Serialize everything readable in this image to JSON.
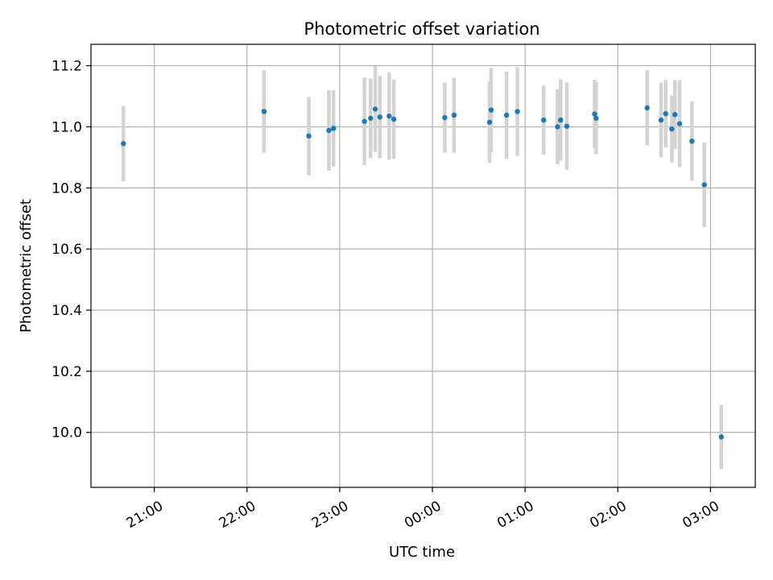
{
  "chart_data": {
    "type": "scatter",
    "title": "Photometric offset variation",
    "xlabel": "UTC time",
    "ylabel": "Photometric offset",
    "x_unit": "UTC time (hh:mm), crossing midnight",
    "xlim": [
      "20:19",
      "03:29"
    ],
    "ylim": [
      9.82,
      11.27
    ],
    "grid": true,
    "x_ticks": [
      "21:00",
      "22:00",
      "23:00",
      "00:00",
      "01:00",
      "02:00",
      "03:00"
    ],
    "y_ticks": [
      "10.0",
      "10.2",
      "10.4",
      "10.6",
      "10.8",
      "11.0",
      "11.2"
    ],
    "y_tick_values": [
      10.0,
      10.2,
      10.4,
      10.6,
      10.8,
      11.0,
      11.2
    ],
    "colors": {
      "points": "#1f77b4",
      "errorbars": "#d3d3d3",
      "grid": "#b0b0b0"
    },
    "points": [
      {
        "x": "20:40",
        "y": 10.945,
        "err": 0.123
      },
      {
        "x": "22:11",
        "y": 11.05,
        "err": 0.135
      },
      {
        "x": "22:40",
        "y": 10.97,
        "err": 0.128
      },
      {
        "x": "22:53",
        "y": 10.988,
        "err": 0.132
      },
      {
        "x": "22:56",
        "y": 10.995,
        "err": 0.125
      },
      {
        "x": "23:16",
        "y": 11.018,
        "err": 0.143
      },
      {
        "x": "23:20",
        "y": 11.028,
        "err": 0.13
      },
      {
        "x": "23:23",
        "y": 11.058,
        "err": 0.14
      },
      {
        "x": "23:26",
        "y": 11.032,
        "err": 0.135
      },
      {
        "x": "23:32",
        "y": 11.035,
        "err": 0.143
      },
      {
        "x": "23:35",
        "y": 11.025,
        "err": 0.13
      },
      {
        "x": "00:08",
        "y": 11.03,
        "err": 0.115
      },
      {
        "x": "00:14",
        "y": 11.038,
        "err": 0.123
      },
      {
        "x": "00:37",
        "y": 11.015,
        "err": 0.133
      },
      {
        "x": "00:38",
        "y": 11.055,
        "err": 0.138
      },
      {
        "x": "00:48",
        "y": 11.038,
        "err": 0.143
      },
      {
        "x": "00:55",
        "y": 11.05,
        "err": 0.145
      },
      {
        "x": "01:12",
        "y": 11.022,
        "err": 0.113
      },
      {
        "x": "01:21",
        "y": 11.0,
        "err": 0.123
      },
      {
        "x": "01:23",
        "y": 11.022,
        "err": 0.133
      },
      {
        "x": "01:27",
        "y": 11.002,
        "err": 0.143
      },
      {
        "x": "01:45",
        "y": 11.042,
        "err": 0.112
      },
      {
        "x": "01:46",
        "y": 11.028,
        "err": 0.118
      },
      {
        "x": "02:19",
        "y": 11.062,
        "err": 0.123
      },
      {
        "x": "02:28",
        "y": 11.022,
        "err": 0.122
      },
      {
        "x": "02:31",
        "y": 11.043,
        "err": 0.11
      },
      {
        "x": "02:35",
        "y": 10.993,
        "err": 0.11
      },
      {
        "x": "02:37",
        "y": 11.04,
        "err": 0.113
      },
      {
        "x": "02:40",
        "y": 11.01,
        "err": 0.142
      },
      {
        "x": "02:48",
        "y": 10.953,
        "err": 0.13
      },
      {
        "x": "02:56",
        "y": 10.81,
        "err": 0.138
      },
      {
        "x": "03:07",
        "y": 9.985,
        "err": 0.105
      }
    ]
  }
}
